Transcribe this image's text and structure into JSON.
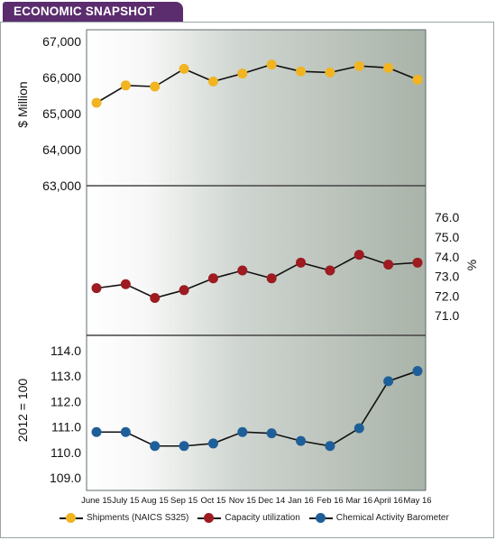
{
  "header": {
    "title": "ECONOMIC SNAPSHOT"
  },
  "colors": {
    "header_bg": "#5b2d6e",
    "shipments": "#f1b422",
    "capacity": "#9d1b21",
    "cab": "#1f5f99"
  },
  "chart_data": [
    {
      "type": "line",
      "name": "shipments",
      "ylabel": "$ Million",
      "ylim": [
        63000,
        67000
      ],
      "yticks": [
        "63,000",
        "64,000",
        "65,000",
        "66,000",
        "67,000"
      ],
      "ytick_values": [
        63000,
        64000,
        65000,
        66000,
        67000
      ],
      "series": [
        {
          "name": "Shipments (NAICS S325)",
          "values": [
            65300,
            65780,
            65750,
            66240,
            65890,
            66110,
            66360,
            66170,
            66140,
            66320,
            66270,
            65940
          ]
        }
      ]
    },
    {
      "type": "line",
      "name": "capacity",
      "ylabel": "%",
      "ylim": [
        70.5,
        76.7
      ],
      "yticks": [
        "71.0",
        "72.0",
        "73.0",
        "74.0",
        "75.0",
        "76.0"
      ],
      "ytick_values": [
        71,
        72,
        73,
        74,
        75,
        76
      ],
      "series": [
        {
          "name": "Capacity utilization",
          "values": [
            72.4,
            72.6,
            71.9,
            72.3,
            72.9,
            73.3,
            72.9,
            73.7,
            73.3,
            74.1,
            73.6,
            73.7
          ]
        }
      ]
    },
    {
      "type": "line",
      "name": "cab",
      "ylabel": "2012 = 100",
      "ylim": [
        109.0,
        114.0
      ],
      "yticks": [
        "109.0",
        "110.0",
        "111.0",
        "112.0",
        "113.0",
        "114.0"
      ],
      "ytick_values": [
        109,
        110,
        111,
        112,
        113,
        114
      ],
      "series": [
        {
          "name": "Chemical Activity Barometer",
          "values": [
            110.8,
            110.8,
            110.25,
            110.25,
            110.35,
            110.8,
            110.75,
            110.45,
            110.25,
            110.95,
            112.8,
            113.2
          ]
        }
      ]
    }
  ],
  "categories": [
    "June 15",
    "July 15",
    "Aug 15",
    "Sep 15",
    "Oct 15",
    "Nov 15",
    "Dec 14",
    "Jan 16",
    "Feb 16",
    "Mar 16",
    "April 16",
    "May 16"
  ],
  "legend": [
    {
      "label": "Shipments (NAICS S325)",
      "color": "#f1b422"
    },
    {
      "label": "Capacity utilization",
      "color": "#9d1b21"
    },
    {
      "label": "Chemical Activity Barometer",
      "color": "#1f5f99"
    }
  ]
}
